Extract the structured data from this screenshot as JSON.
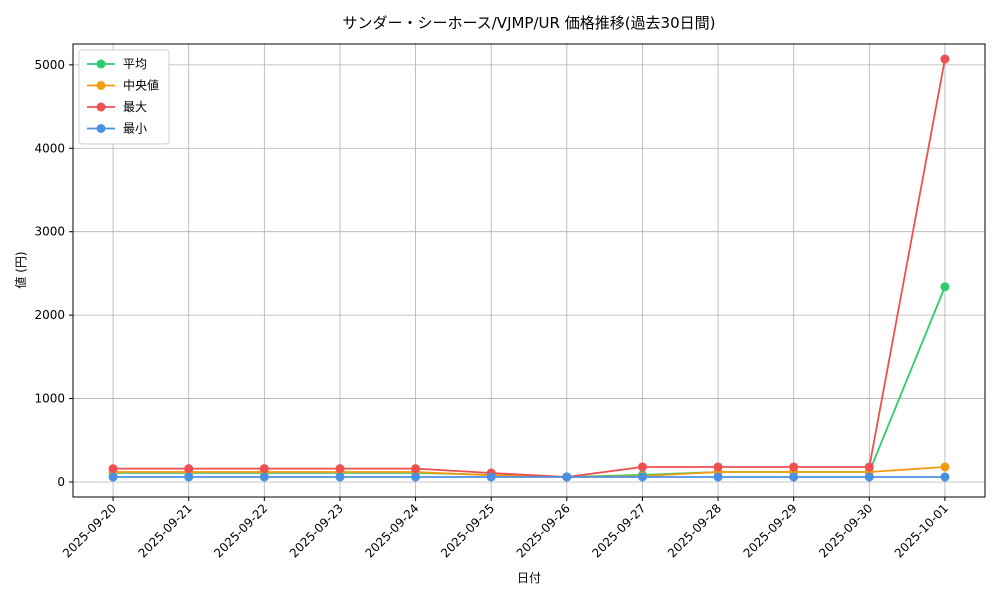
{
  "chart_data": {
    "type": "line",
    "title": "サンダー・シーホース/VJMP/UR 価格推移(過去30日間)",
    "x_label": "日付",
    "y_label": "値 (円)",
    "categories": [
      "2025-09-20",
      "2025-09-21",
      "2025-09-22",
      "2025-09-23",
      "2025-09-24",
      "2025-09-25",
      "2025-09-26",
      "2025-09-27",
      "2025-09-28",
      "2025-09-29",
      "2025-09-30",
      "2025-10-01"
    ],
    "series": [
      {
        "name": "平均",
        "color": "#2ecc71",
        "values": [
          110,
          110,
          110,
          110,
          110,
          85,
          60,
          85,
          120,
          120,
          120,
          2340
        ]
      },
      {
        "name": "中央値",
        "color": "#f39c12",
        "values": [
          120,
          120,
          120,
          120,
          120,
          80,
          60,
          70,
          120,
          120,
          120,
          180
        ]
      },
      {
        "name": "最大",
        "color": "#ef4f4f",
        "values": [
          160,
          160,
          160,
          160,
          160,
          108,
          60,
          180,
          180,
          180,
          180,
          5070
        ]
      },
      {
        "name": "最小",
        "color": "#4a90e2",
        "values": [
          60,
          60,
          60,
          60,
          60,
          60,
          60,
          60,
          60,
          60,
          60,
          60
        ]
      }
    ],
    "ylim": [
      -180,
      5250
    ],
    "yticks": [
      0,
      1000,
      2000,
      3000,
      4000,
      5000
    ],
    "grid": true,
    "legend": "upper-left"
  }
}
